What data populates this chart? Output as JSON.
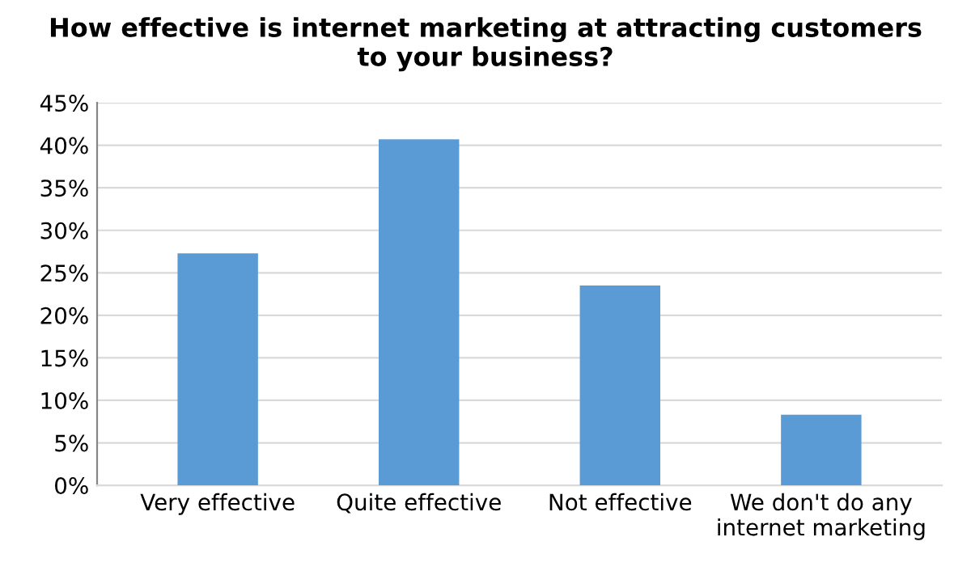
{
  "chart_data": {
    "type": "bar",
    "title": "How effective is internet marketing at attracting customers\nto your business?",
    "categories": [
      "Very effective",
      "Quite effective",
      "Not effective",
      "We don't do any\ninternet marketing"
    ],
    "values": [
      27.3,
      40.7,
      23.5,
      8.3
    ],
    "color": "#5b9bd5",
    "ylim": [
      0,
      45
    ],
    "yticks": [
      {
        "value": 0,
        "label": "0%"
      },
      {
        "value": 5,
        "label": "5%"
      },
      {
        "value": 10,
        "label": "10%"
      },
      {
        "value": 15,
        "label": "15%"
      },
      {
        "value": 20,
        "label": "20%"
      },
      {
        "value": 25,
        "label": "25%"
      },
      {
        "value": 30,
        "label": "30%"
      },
      {
        "value": 35,
        "label": "35%"
      },
      {
        "value": 40,
        "label": "40%"
      },
      {
        "value": 45,
        "label": "45%"
      }
    ],
    "grid": "y"
  }
}
